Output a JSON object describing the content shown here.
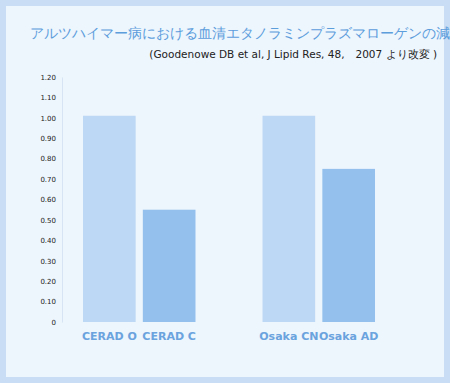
{
  "chart_data": {
    "type": "bar",
    "title": "アルツハイマー病における血清エタノラミンプラズマローゲンの減少",
    "subtitle": "(Goodenowe DB et al, J Lipid Res, 48,　2007 より改変 )",
    "categories": [
      "CERAD O",
      "CERAD C",
      "Osaka CN",
      "Osaka AD"
    ],
    "values": [
      1.01,
      0.55,
      1.01,
      0.75
    ],
    "colors": [
      "#bcd8f4",
      "#94c0ee",
      "#bcd8f4",
      "#94c0ee"
    ],
    "ylim": [
      0,
      1.2
    ],
    "yticks": [
      0,
      {
        "value": 0.1,
        "label": "0.10"
      },
      {
        "value": 0.2,
        "label": "0.20"
      },
      {
        "value": 0.3,
        "label": "0.30"
      },
      {
        "value": 0.4,
        "label": "0.40"
      },
      {
        "value": 0.5,
        "label": "0.50"
      },
      {
        "value": 0.6,
        "label": "0.60"
      },
      {
        "value": 0.7,
        "label": "0.70"
      },
      {
        "value": 0.8,
        "label": "0.80"
      },
      {
        "value": 0.9,
        "label": "0.90"
      },
      {
        "value": 1.0,
        "label": "1.00"
      },
      {
        "value": 1.1,
        "label": "1.10"
      },
      {
        "value": 1.2,
        "label": "1.20"
      }
    ],
    "grid": false
  }
}
